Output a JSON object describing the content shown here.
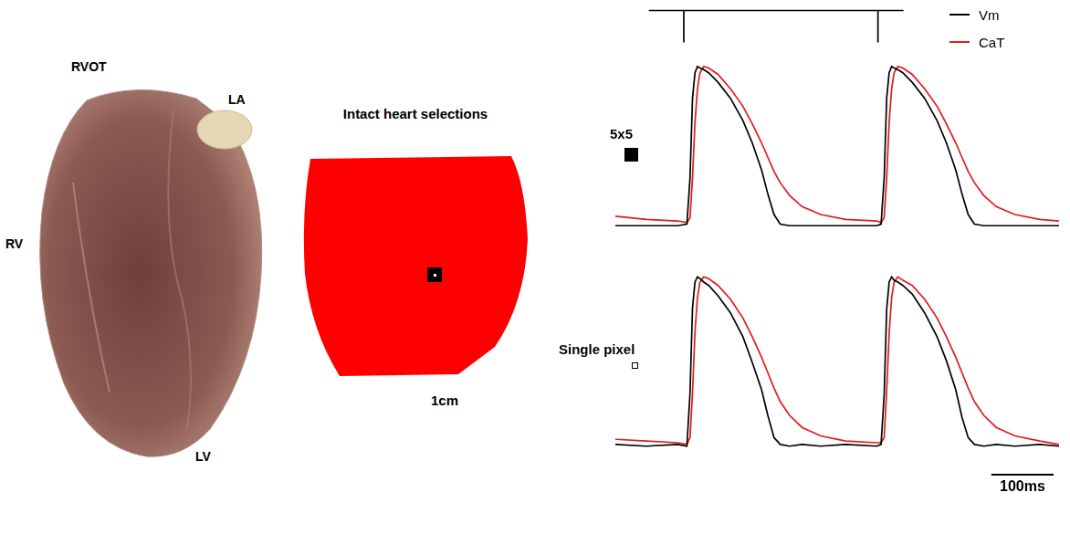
{
  "heart_photo": {
    "labels": [
      "RVOT",
      "LA",
      "RV",
      "LV"
    ]
  },
  "selection_map": {
    "title": "Intact heart selections",
    "scale_label": "1cm"
  },
  "stimulus": {
    "type": "line",
    "color": "#000000",
    "tick_labels": false,
    "xlim": [
      0,
      713
    ],
    "ylim": [
      -0.1,
      1.1
    ],
    "x": [
      54,
      110,
      110,
      110,
      422,
      422,
      422,
      463
    ],
    "values": [
      1,
      1,
      0,
      1,
      1,
      0,
      1,
      1
    ]
  },
  "chart_data": [
    {
      "type": "line",
      "title": "5x5",
      "tick_labels": false,
      "legend": "upper right",
      "xlim": [
        0,
        713
      ],
      "ylim": [
        -0.05,
        1.05
      ],
      "x": [
        0,
        50,
        100,
        115,
        120,
        124,
        128,
        132,
        136,
        142,
        150,
        165,
        185,
        205,
        220,
        235,
        245,
        255,
        265,
        280,
        300,
        330,
        370,
        420,
        427,
        432,
        436,
        440,
        444,
        448,
        454,
        462,
        477,
        497,
        517,
        532,
        547,
        557,
        567,
        577,
        592,
        612,
        642,
        682,
        713
      ],
      "series": [
        {
          "name": "Vm",
          "color": "#000000",
          "values": [
            0,
            0,
            0,
            0.01,
            0.3,
            0.8,
            0.96,
            1.0,
            0.99,
            0.98,
            0.96,
            0.9,
            0.8,
            0.66,
            0.52,
            0.35,
            0.2,
            0.07,
            0.01,
            0,
            0,
            0,
            0,
            0,
            0.01,
            0.3,
            0.8,
            0.96,
            1.0,
            0.99,
            0.98,
            0.96,
            0.9,
            0.8,
            0.66,
            0.52,
            0.35,
            0.2,
            0.07,
            0.01,
            0,
            0,
            0,
            0,
            0
          ]
        },
        {
          "name": "CaT",
          "color": "#e31a1c",
          "values": [
            0.06,
            0.04,
            0.03,
            0.02,
            0.05,
            0.3,
            0.65,
            0.86,
            0.96,
            1.0,
            0.99,
            0.95,
            0.86,
            0.75,
            0.64,
            0.52,
            0.43,
            0.34,
            0.27,
            0.19,
            0.12,
            0.07,
            0.04,
            0.03,
            0.02,
            0.05,
            0.3,
            0.65,
            0.86,
            0.96,
            1.0,
            0.99,
            0.95,
            0.86,
            0.75,
            0.64,
            0.52,
            0.43,
            0.34,
            0.27,
            0.19,
            0.12,
            0.07,
            0.04,
            0.03
          ]
        }
      ]
    },
    {
      "type": "line",
      "title": "Single pixel",
      "tick_labels": false,
      "xlim": [
        0,
        713
      ],
      "ylim": [
        -0.05,
        1.05
      ],
      "x": [
        0,
        50,
        100,
        115,
        120,
        124,
        128,
        132,
        136,
        142,
        150,
        165,
        185,
        205,
        220,
        235,
        245,
        255,
        265,
        280,
        300,
        330,
        370,
        420,
        427,
        432,
        436,
        440,
        444,
        448,
        454,
        462,
        477,
        497,
        517,
        532,
        547,
        557,
        567,
        577,
        592,
        612,
        642,
        682,
        713
      ],
      "series": [
        {
          "name": "Vm",
          "color": "#000000",
          "values": [
            0.02,
            0.01,
            0.02,
            0.01,
            0.32,
            0.82,
            0.97,
            1.0,
            0.99,
            0.97,
            0.95,
            0.89,
            0.79,
            0.65,
            0.5,
            0.34,
            0.19,
            0.06,
            0.02,
            0.01,
            0.02,
            0.01,
            0.02,
            0.01,
            0.02,
            0.31,
            0.81,
            0.97,
            1.0,
            0.98,
            0.97,
            0.95,
            0.9,
            0.79,
            0.65,
            0.51,
            0.34,
            0.18,
            0.06,
            0.02,
            0.01,
            0.02,
            0.01,
            0.02,
            0.01
          ]
        },
        {
          "name": "CaT",
          "color": "#e31a1c",
          "values": [
            0.05,
            0.04,
            0.03,
            0.02,
            0.06,
            0.32,
            0.68,
            0.88,
            0.97,
            1.0,
            0.99,
            0.95,
            0.87,
            0.76,
            0.65,
            0.53,
            0.44,
            0.35,
            0.27,
            0.19,
            0.12,
            0.07,
            0.04,
            0.03,
            0.03,
            0.06,
            0.33,
            0.67,
            0.88,
            0.97,
            1.0,
            0.98,
            0.95,
            0.87,
            0.76,
            0.65,
            0.53,
            0.44,
            0.35,
            0.27,
            0.19,
            0.12,
            0.07,
            0.04,
            0.02
          ]
        }
      ]
    }
  ],
  "scale_bar": {
    "value": 100,
    "label": "100ms"
  }
}
